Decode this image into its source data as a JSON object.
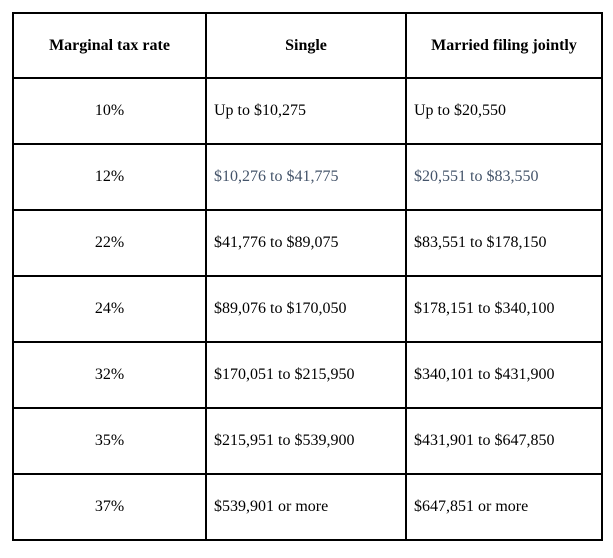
{
  "table": {
    "columns": [
      "Marginal tax rate",
      "Single",
      "Married filing jointly"
    ],
    "rows": [
      {
        "rate": "10%",
        "single": "Up to $10,275",
        "married": "Up to $20,550",
        "highlight": false
      },
      {
        "rate": "12%",
        "single": "$10,276 to $41,775",
        "married": "$20,551 to $83,550",
        "highlight": true
      },
      {
        "rate": "22%",
        "single": "$41,776 to $89,075",
        "married": "$83,551 to $178,150",
        "highlight": false
      },
      {
        "rate": "24%",
        "single": "$89,076 to $170,050",
        "married": "$178,151 to $340,100",
        "highlight": false
      },
      {
        "rate": "32%",
        "single": "$170,051 to $215,950",
        "married": "$340,101 to $431,900",
        "highlight": false
      },
      {
        "rate": "35%",
        "single": "$215,951 to $539,900",
        "married": "$431,901 to $647,850",
        "highlight": false
      },
      {
        "rate": "37%",
        "single": "$539,901 or more",
        "married": "$647,851 or more",
        "highlight": false
      }
    ],
    "colors": {
      "text": "#000000",
      "highlight_text": "#44546a",
      "border": "#000000",
      "background": "#ffffff"
    }
  }
}
